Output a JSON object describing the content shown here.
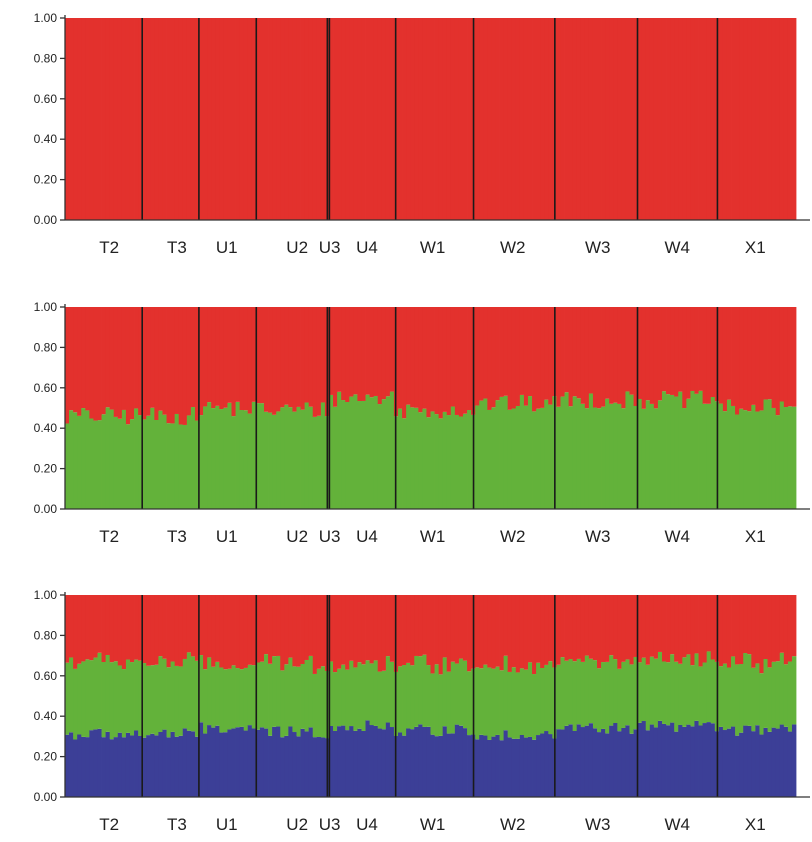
{
  "colors": {
    "cluster1": "#e3312d",
    "cluster2": "#63b23a",
    "cluster3": "#3c3f97",
    "separator": "#1a1a1a"
  },
  "chart_data": [
    {
      "type": "bar",
      "stacked": true,
      "ylim": [
        0,
        1
      ],
      "yticks": [
        "0.00",
        "0.20",
        "0.40",
        "0.60",
        "0.80",
        "1.00"
      ],
      "populations": [
        {
          "label": "T2",
          "fraction": 0.113
        },
        {
          "label": "T3",
          "fraction": 0.083
        },
        {
          "label": "U1",
          "fraction": 0.084
        },
        {
          "label": "U2",
          "fraction": 0.104
        },
        {
          "label": "U3",
          "fraction": 0.003
        },
        {
          "label": "U4",
          "fraction": 0.097
        },
        {
          "label": "W1",
          "fraction": 0.114
        },
        {
          "label": "W2",
          "fraction": 0.119
        },
        {
          "label": "W3",
          "fraction": 0.121
        },
        {
          "label": "W4",
          "fraction": 0.117
        },
        {
          "label": "X1",
          "fraction": 0.115
        }
      ],
      "label_positions": [
        0.064,
        0.162,
        0.234,
        0.336,
        0.383,
        0.437,
        0.532,
        0.648,
        0.771,
        0.886,
        0.999
      ],
      "series": [
        {
          "name": "cluster1",
          "mean": 1.0,
          "spread": 0.0
        }
      ]
    },
    {
      "type": "bar",
      "stacked": true,
      "ylim": [
        0,
        1
      ],
      "yticks": [
        "0.00",
        "0.20",
        "0.40",
        "0.60",
        "0.80",
        "1.00"
      ],
      "populations": [
        {
          "label": "T2",
          "fraction": 0.113
        },
        {
          "label": "T3",
          "fraction": 0.083
        },
        {
          "label": "U1",
          "fraction": 0.084
        },
        {
          "label": "U2",
          "fraction": 0.104
        },
        {
          "label": "U3",
          "fraction": 0.003
        },
        {
          "label": "U4",
          "fraction": 0.097
        },
        {
          "label": "W1",
          "fraction": 0.114
        },
        {
          "label": "W2",
          "fraction": 0.119
        },
        {
          "label": "W3",
          "fraction": 0.121
        },
        {
          "label": "W4",
          "fraction": 0.117
        },
        {
          "label": "X1",
          "fraction": 0.115
        }
      ],
      "label_positions": [
        0.064,
        0.162,
        0.234,
        0.336,
        0.383,
        0.437,
        0.532,
        0.648,
        0.771,
        0.886,
        0.999
      ],
      "series": [
        {
          "name": "cluster2",
          "population_means": [
            0.46,
            0.46,
            0.5,
            0.49,
            0.52,
            0.55,
            0.49,
            0.52,
            0.54,
            0.54,
            0.5
          ],
          "spread": 0.09
        },
        {
          "name": "cluster1",
          "remainder": true
        }
      ]
    },
    {
      "type": "bar",
      "stacked": true,
      "ylim": [
        0,
        1
      ],
      "yticks": [
        "0.00",
        "0.20",
        "0.40",
        "0.60",
        "0.80",
        "1.00"
      ],
      "populations": [
        {
          "label": "T2",
          "fraction": 0.113
        },
        {
          "label": "T3",
          "fraction": 0.083
        },
        {
          "label": "U1",
          "fraction": 0.084
        },
        {
          "label": "U2",
          "fraction": 0.104
        },
        {
          "label": "U3",
          "fraction": 0.003
        },
        {
          "label": "U4",
          "fraction": 0.097
        },
        {
          "label": "W1",
          "fraction": 0.114
        },
        {
          "label": "W2",
          "fraction": 0.119
        },
        {
          "label": "W3",
          "fraction": 0.121
        },
        {
          "label": "W4",
          "fraction": 0.117
        },
        {
          "label": "X1",
          "fraction": 0.115
        }
      ],
      "label_positions": [
        0.064,
        0.162,
        0.234,
        0.336,
        0.383,
        0.437,
        0.532,
        0.648,
        0.771,
        0.886,
        0.999
      ],
      "series": [
        {
          "name": "cluster3",
          "population_means": [
            0.31,
            0.31,
            0.34,
            0.32,
            0.33,
            0.35,
            0.33,
            0.31,
            0.34,
            0.35,
            0.33
          ],
          "spread": 0.06
        },
        {
          "name": "cluster2",
          "population_means": [
            0.36,
            0.36,
            0.31,
            0.34,
            0.34,
            0.31,
            0.33,
            0.34,
            0.33,
            0.32,
            0.33
          ],
          "spread": 0.06
        },
        {
          "name": "cluster1",
          "remainder": true
        }
      ]
    }
  ]
}
